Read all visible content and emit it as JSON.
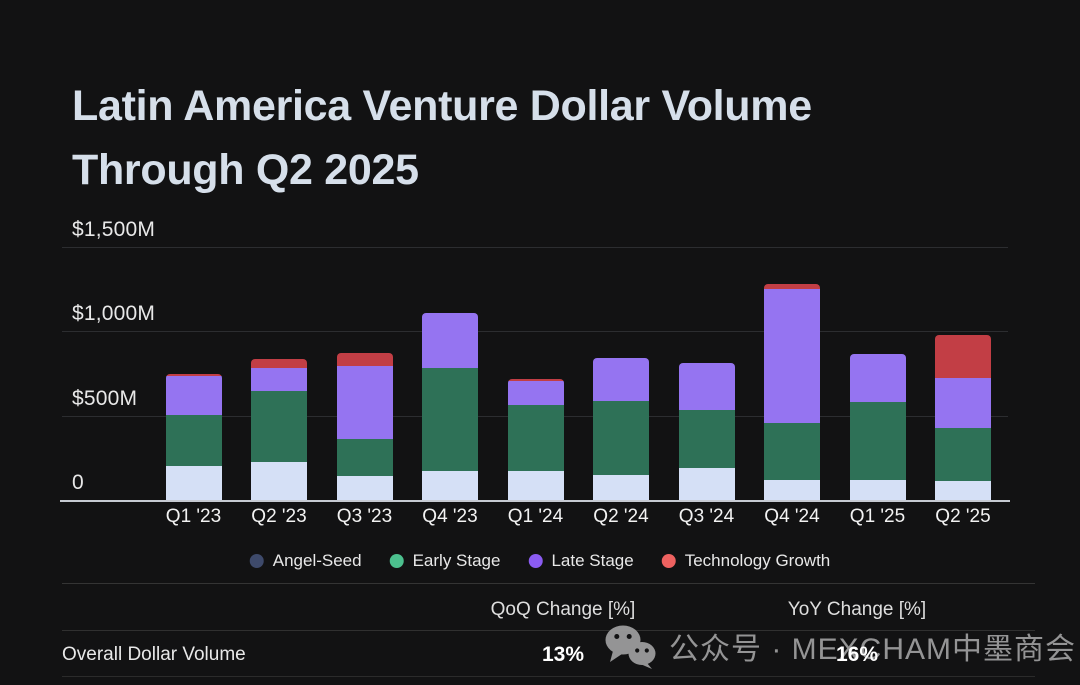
{
  "title": {
    "line1": "Latin America Venture Dollar Volume",
    "line2": "Through Q2 2025"
  },
  "chart_data": {
    "type": "bar",
    "stacked": true,
    "title": "Latin America Venture Dollar Volume Through Q2 2025",
    "unit": "$M",
    "categories": [
      "Q1 '23",
      "Q2 '23",
      "Q3 '23",
      "Q4 '23",
      "Q1 '24",
      "Q2 '24",
      "Q3 '24",
      "Q4 '24",
      "Q1 '25",
      "Q2 '25"
    ],
    "series": [
      {
        "name": "Angel-Seed",
        "bar_color": "#d5e0f6",
        "legend_color": "#3e4a6b",
        "values": [
          200,
          225,
          140,
          170,
          170,
          150,
          190,
          120,
          120,
          115
        ]
      },
      {
        "name": "Early Stage",
        "bar_color": "#2e7157",
        "legend_color": "#4cc08e",
        "values": [
          305,
          420,
          220,
          610,
          395,
          435,
          345,
          335,
          460,
          310
        ]
      },
      {
        "name": "Late Stage",
        "bar_color": "#9574f1",
        "legend_color": "#8b5cf2",
        "values": [
          230,
          140,
          435,
          330,
          140,
          255,
          275,
          795,
          285,
          300
        ]
      },
      {
        "name": "Technology Growth",
        "bar_color": "#c23e45",
        "legend_color": "#ee6260",
        "values": [
          10,
          50,
          75,
          0,
          10,
          0,
          0,
          30,
          0,
          255
        ]
      }
    ],
    "totals_estimated_musd": [
      745,
      835,
      870,
      1110,
      715,
      840,
      810,
      1280,
      865,
      980
    ],
    "y_ticks": [
      {
        "label": "$1,500M",
        "value": 1500
      },
      {
        "label": "$1,000M",
        "value": 1000
      },
      {
        "label": "$500M",
        "value": 500
      },
      {
        "label": "0",
        "value": 0
      }
    ],
    "ylim": [
      0,
      1500
    ],
    "grid": true,
    "legend_position": "bottom"
  },
  "table": {
    "col_headers": [
      "QoQ Change [%]",
      "YoY Change [%]"
    ],
    "rows": [
      {
        "label": "Overall Dollar Volume",
        "qoq": "13%",
        "yoy": "16%"
      }
    ]
  },
  "watermark": {
    "icon": "wechat-icon",
    "text": "公众号 · MEXCHAM中墨商会"
  },
  "colors": {
    "background": "#121213",
    "title_text": "#d6dfea",
    "axis_line": "#c6cad2",
    "gridline": "#2c2d30",
    "divider": "#343434",
    "tick_text": "#e8e8e8",
    "value_text": "#ffffff",
    "watermark_text": "#9c9c9c"
  }
}
